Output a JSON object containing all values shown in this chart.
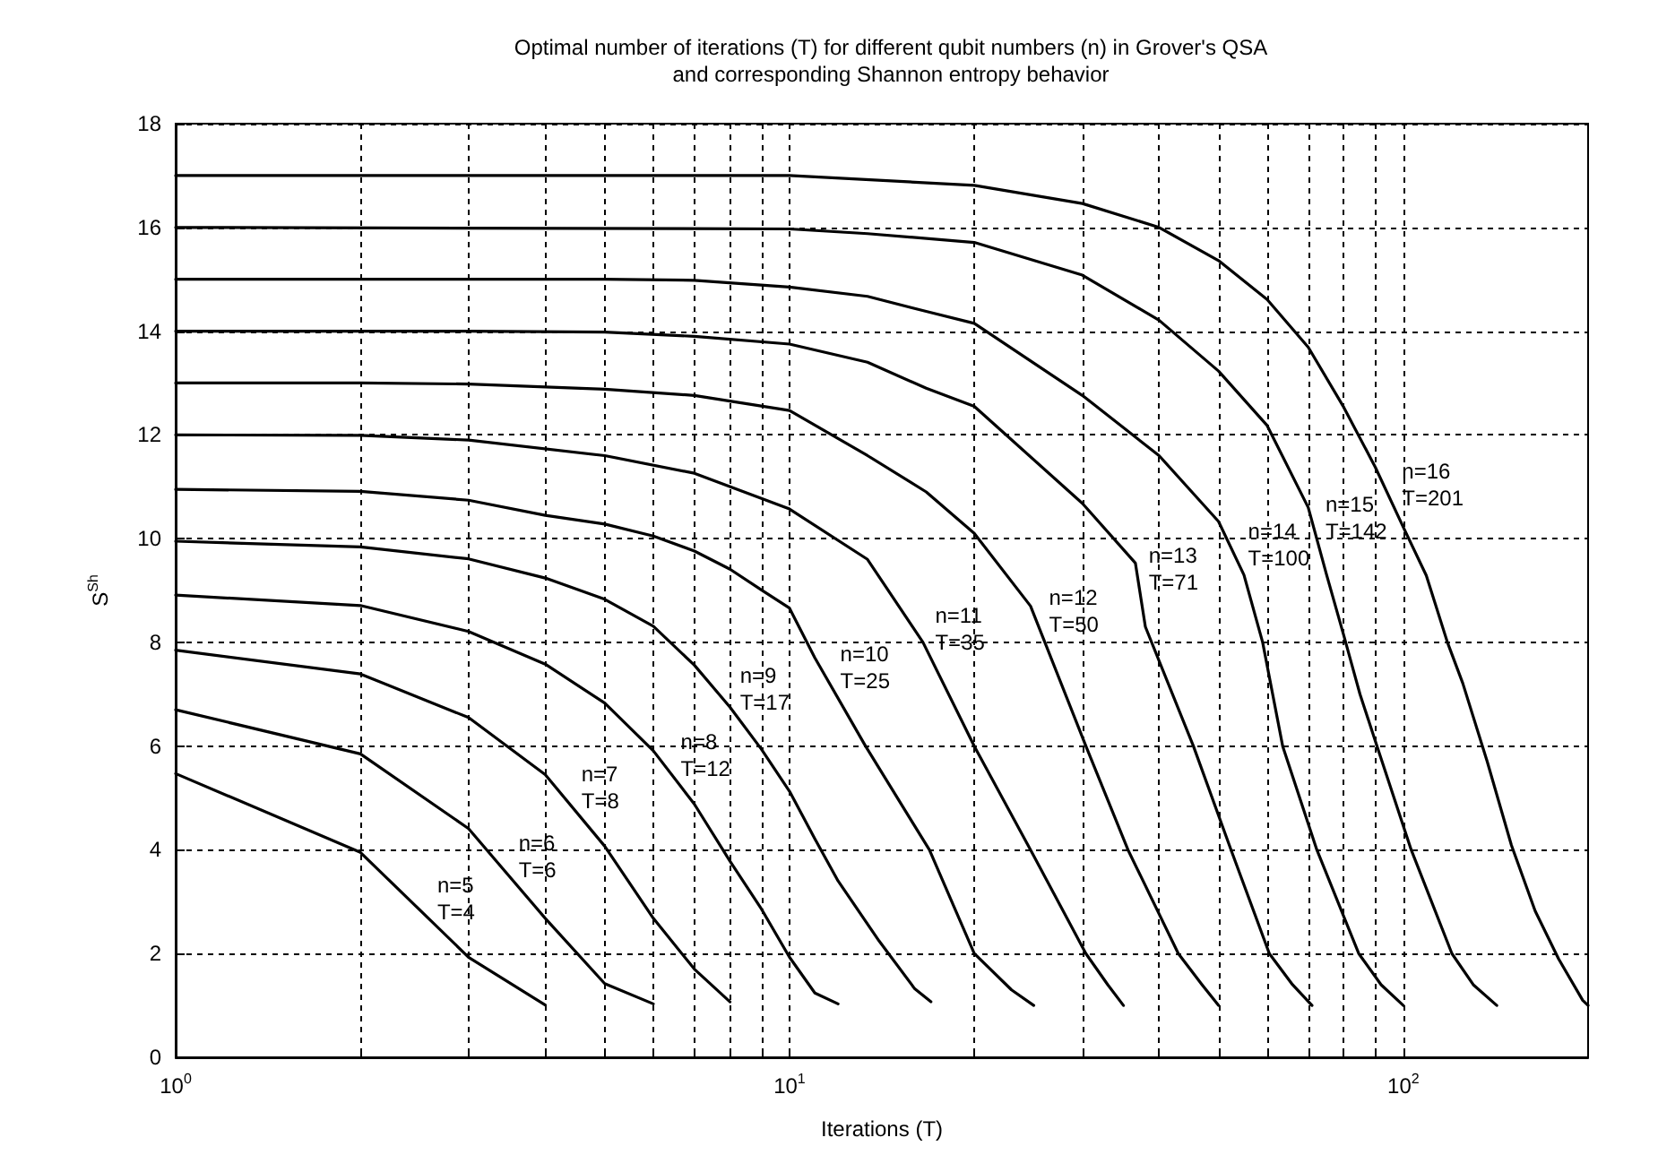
{
  "chart_data": {
    "type": "line",
    "title": "Optimal number of iterations (T) for different qubit numbers (n) in Grover's QSA\nand corresponding Shannon entropy behavior",
    "xlabel": "Iterations (T)",
    "ylabel": "S$^{Sh}$",
    "log": "x",
    "xlim": [
      1,
      200
    ],
    "ylim": [
      0,
      18
    ],
    "xticks": [
      {
        "value": 1,
        "label": "10$^{0}$"
      },
      {
        "value": 2,
        "label": null
      },
      {
        "value": 3,
        "label": null
      },
      {
        "value": 4,
        "label": null
      },
      {
        "value": 5,
        "label": null
      },
      {
        "value": 6,
        "label": null
      },
      {
        "value": 7,
        "label": null
      },
      {
        "value": 8,
        "label": null
      },
      {
        "value": 9,
        "label": null
      },
      {
        "value": 10,
        "label": "10$^{1}$"
      },
      {
        "value": 20,
        "label": null
      },
      {
        "value": 30,
        "label": null
      },
      {
        "value": 40,
        "label": null
      },
      {
        "value": 50,
        "label": null
      },
      {
        "value": 60,
        "label": null
      },
      {
        "value": 70,
        "label": null
      },
      {
        "value": 80,
        "label": null
      },
      {
        "value": 90,
        "label": null
      },
      {
        "value": 100,
        "label": "10$^{2}$"
      }
    ],
    "yticks": [
      0,
      2,
      4,
      6,
      8,
      10,
      12,
      14,
      16,
      18
    ],
    "grid": true,
    "marker": "none",
    "line_style": "solid",
    "series": [
      {
        "color": "#000000",
        "x": [
          1,
          2,
          3,
          4
        ],
        "values": [
          5.47,
          3.95,
          1.93,
          1.01
        ]
      },
      {
        "color": "#000000",
        "x": [
          1,
          2,
          3,
          4,
          5,
          6
        ],
        "values": [
          6.7,
          5.85,
          4.41,
          2.68,
          1.42,
          1.03
        ]
      },
      {
        "color": "#000000",
        "x": [
          1,
          2,
          3,
          4,
          5,
          6,
          7,
          8
        ],
        "values": [
          7.85,
          7.39,
          6.55,
          5.45,
          4.07,
          2.68,
          1.7,
          1.07
        ]
      },
      {
        "color": "#000000",
        "x": [
          1,
          2,
          3,
          4,
          5,
          6,
          7,
          8,
          9,
          10,
          11,
          12
        ],
        "values": [
          8.91,
          8.71,
          8.21,
          7.58,
          6.83,
          5.91,
          4.88,
          3.78,
          2.86,
          1.93,
          1.24,
          1.03
        ]
      },
      {
        "color": "#000000",
        "x": [
          1,
          2,
          3,
          4,
          5,
          6,
          7,
          8,
          9,
          10,
          11,
          12,
          14,
          16,
          17
        ],
        "values": [
          9.95,
          9.84,
          9.61,
          9.24,
          8.83,
          8.31,
          7.56,
          6.75,
          5.94,
          5.13,
          4.21,
          3.4,
          2.24,
          1.32,
          1.07
        ]
      },
      {
        "color": "#000000",
        "x": [
          1,
          2,
          3,
          4,
          5,
          6,
          7,
          8,
          9,
          10,
          11,
          13.3,
          16.9,
          20,
          23,
          25
        ],
        "values": [
          10.95,
          10.91,
          10.74,
          10.45,
          10.28,
          10.05,
          9.76,
          9.41,
          9.01,
          8.66,
          7.7,
          6.0,
          4.0,
          2.0,
          1.3,
          1.0
        ]
      },
      {
        "color": "#000000",
        "x": [
          1,
          2,
          3,
          5,
          7,
          10,
          13.4,
          16.5,
          20,
          24.7,
          30.4,
          33,
          35
        ],
        "values": [
          12.0,
          11.99,
          11.9,
          11.6,
          11.26,
          10.57,
          9.6,
          8.0,
          6.0,
          4.0,
          2.0,
          1.4,
          1.0
        ]
      },
      {
        "color": "#000000",
        "x": [
          1,
          2,
          3,
          5,
          7,
          10,
          13.4,
          16.7,
          20,
          24.7,
          30.4,
          35.6,
          43,
          47,
          50
        ],
        "values": [
          13.0,
          13.0,
          12.98,
          12.88,
          12.76,
          12.47,
          11.6,
          10.9,
          10.1,
          8.7,
          6.0,
          4.0,
          2.0,
          1.4,
          1.0
        ]
      },
      {
        "color": "#000000",
        "x": [
          1,
          3,
          5,
          7,
          10,
          13.4,
          16.7,
          20,
          30,
          36.6,
          38,
          45.5,
          52.4,
          60.5,
          66,
          71
        ],
        "values": [
          14.0,
          14.0,
          13.98,
          13.9,
          13.75,
          13.4,
          12.9,
          12.55,
          10.68,
          9.53,
          8.3,
          6.0,
          4.0,
          2.0,
          1.4,
          1.0
        ]
      },
      {
        "color": "#000000",
        "x": [
          1,
          5,
          7,
          10,
          13.4,
          16.7,
          20,
          30,
          40,
          50,
          55,
          59,
          63.6,
          72.3,
          84.6,
          92,
          100
        ],
        "values": [
          15.0,
          15.0,
          14.98,
          14.85,
          14.67,
          14.38,
          14.15,
          12.76,
          11.6,
          10.33,
          9.3,
          8.0,
          6.0,
          4.0,
          2.0,
          1.4,
          1.0
        ]
      },
      {
        "color": "#000000",
        "x": [
          1,
          10,
          13.4,
          20,
          30,
          40,
          50,
          60,
          70,
          75,
          80,
          85,
          90.6,
          103,
          120,
          130,
          142
        ],
        "values": [
          16.0,
          15.97,
          15.88,
          15.71,
          15.08,
          14.21,
          13.23,
          12.18,
          10.6,
          9.3,
          8.13,
          7.0,
          6.0,
          4.0,
          2.0,
          1.4,
          1.0
        ]
      },
      {
        "color": "#000000",
        "values": [
          17.0,
          17.0,
          16.81,
          16.46,
          16.0,
          15.36,
          14.61,
          13.69,
          12.53,
          11.38,
          10.22,
          9.29,
          8.0,
          7.21,
          5.7,
          4.09,
          2.82,
          1.9,
          1.1,
          1.0
        ],
        "x": [
          1,
          10,
          20,
          30,
          40,
          50,
          60,
          70,
          80,
          90,
          100,
          109,
          118,
          125,
          137,
          150,
          164,
          179,
          196,
          200
        ]
      }
    ],
    "annotations": [
      {
        "text": "n=5\nT=4",
        "x": 2.58,
        "y": 2.68
      },
      {
        "text": "n=6\nT=6",
        "x": 3.5,
        "y": 3.49
      },
      {
        "text": "n=7\nT=8",
        "x": 4.43,
        "y": 4.82
      },
      {
        "text": "n=8\nT=12",
        "x": 6.43,
        "y": 5.45
      },
      {
        "text": "n=9\nT=17",
        "x": 8.03,
        "y": 6.72
      },
      {
        "text": "n=10\nT=25",
        "x": 11.7,
        "y": 7.13
      },
      {
        "text": "n=11\nT=35",
        "x": 16.7,
        "y": 7.88
      },
      {
        "text": "n=12\nT=50",
        "x": 25.6,
        "y": 8.23
      },
      {
        "text": "n=13\nT=71",
        "x": 37.2,
        "y": 9.03
      },
      {
        "text": "n=14\nT=100",
        "x": 54,
        "y": 9.5
      },
      {
        "text": "n=15\nT=142",
        "x": 72.2,
        "y": 10.02
      },
      {
        "text": "n=16\nT=201",
        "x": 96.2,
        "y": 10.65
      }
    ]
  }
}
